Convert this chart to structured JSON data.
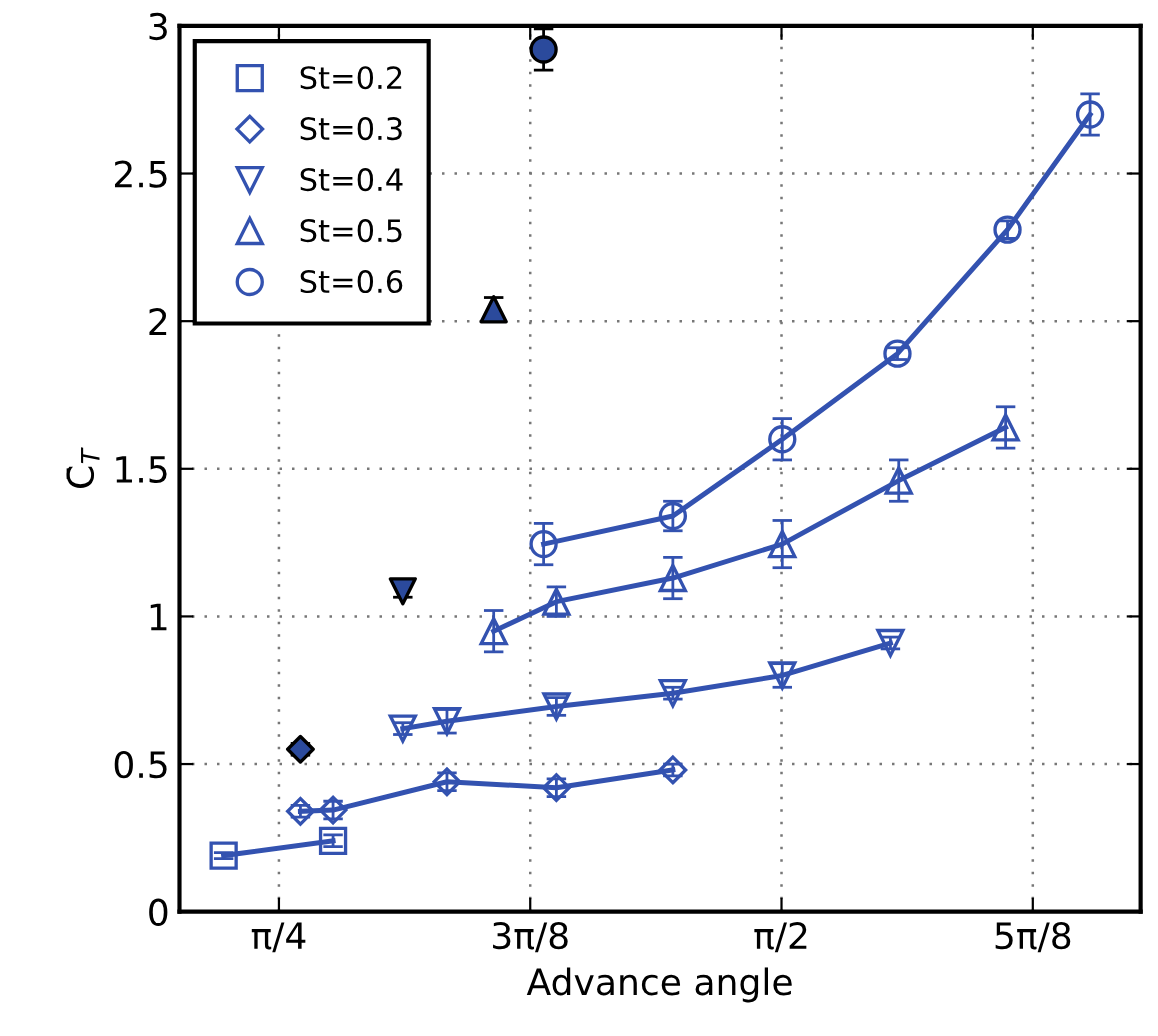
{
  "chart_data": {
    "type": "line",
    "xlabel": "Advance angle",
    "ylabel": "C̄$_{T}$",
    "xlim": [
      0.63,
      2.132
    ],
    "ylim": [
      0,
      3
    ],
    "xticks": [
      {
        "value": 0.7854,
        "label": "π/4"
      },
      {
        "value": 1.1781,
        "label": "3π/8"
      },
      {
        "value": 1.5708,
        "label": "π/2"
      },
      {
        "value": 1.9635,
        "label": "5π/8"
      }
    ],
    "yticks": [
      0,
      0.5,
      1,
      1.5,
      2,
      2.5,
      3
    ],
    "grid": true,
    "legend": "top left",
    "line_style": "solid",
    "series": [
      {
        "name": "St=0.2",
        "color": "#3352b0",
        "marker": "square",
        "x": [
          0.699,
          0.87
        ],
        "values": [
          0.19,
          0.24
        ],
        "errors": [
          0.01,
          0.02
        ]
      },
      {
        "name": "St=0.3",
        "color": "#3352b0",
        "marker": "diamond",
        "x": [
          0.819,
          0.87,
          1.048,
          1.219,
          1.401
        ],
        "values": [
          0.34,
          0.344,
          0.44,
          0.42,
          0.48
        ],
        "errors": [
          0.02,
          0.03,
          0.03,
          0.03,
          0.02
        ]
      },
      {
        "name": "St=0.4",
        "color": "#3352b0",
        "marker": "triangle_down",
        "x": [
          0.979,
          1.048,
          1.219,
          1.401,
          1.572,
          1.741
        ],
        "values": [
          0.62,
          0.645,
          0.695,
          0.74,
          0.8,
          0.91
        ],
        "errors": [
          0.02,
          0.04,
          0.03,
          0.02,
          0.04,
          0.02
        ]
      },
      {
        "name": "St=0.5",
        "color": "#3352b0",
        "marker": "triangle",
        "x": [
          1.121,
          1.219,
          1.401,
          1.572,
          1.754,
          1.921
        ],
        "values": [
          0.95,
          1.05,
          1.13,
          1.245,
          1.46,
          1.64
        ],
        "errors": [
          0.07,
          0.05,
          0.07,
          0.08,
          0.07,
          0.07
        ]
      },
      {
        "name": "St=0.6",
        "color": "#3352b0",
        "marker": "circle",
        "x": [
          1.199,
          1.401,
          1.572,
          1.752,
          1.924,
          2.053
        ],
        "values": [
          1.245,
          1.34,
          1.6,
          1.89,
          2.31,
          2.7
        ],
        "errors": [
          0.07,
          0.05,
          0.07,
          0.02,
          0.03,
          0.07
        ]
      },
      {
        "type": "scatter",
        "color": "#2b4a9c",
        "marker": "diamond",
        "x": [
          0.819
        ],
        "values": [
          0.55
        ],
        "errors": [
          0.02
        ]
      },
      {
        "type": "scatter",
        "color": "#2b4a9c",
        "marker": "triangle_down",
        "x": [
          0.979
        ],
        "values": [
          1.085
        ],
        "errors": [
          0.02
        ]
      },
      {
        "type": "scatter",
        "color": "#2b4a9c",
        "marker": "triangle",
        "x": [
          1.121
        ],
        "values": [
          2.04
        ],
        "errors": [
          0.04
        ]
      },
      {
        "type": "scatter",
        "color": "#2b4a9c",
        "marker": "circle",
        "x": [
          1.199
        ],
        "values": [
          2.92
        ],
        "errors": [
          0.07
        ]
      }
    ]
  }
}
